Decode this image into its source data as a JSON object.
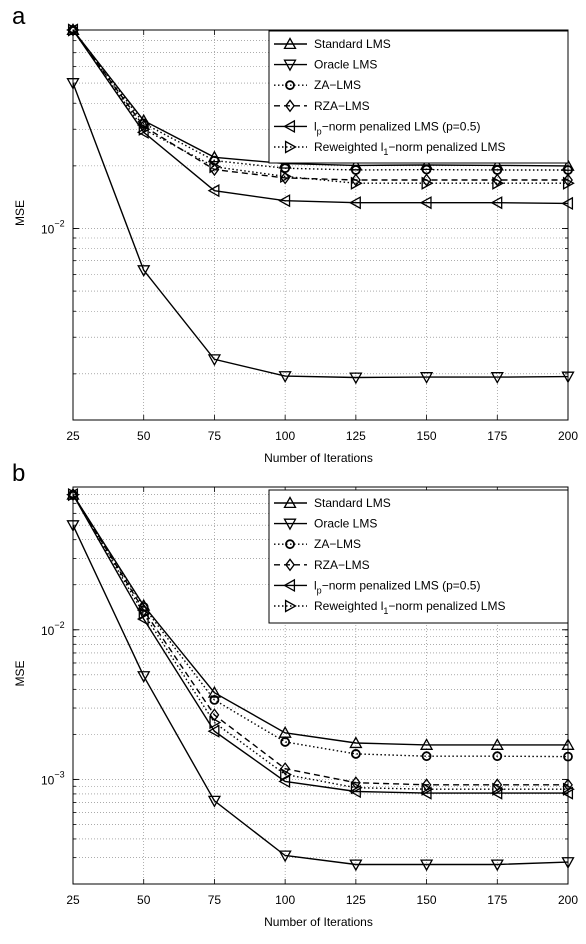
{
  "chart_data": [
    {
      "type": "line",
      "panel_label": "a",
      "xlabel": "Number of Iterations",
      "ylabel": "MSE",
      "yscale": "log",
      "x": [
        25,
        50,
        75,
        100,
        125,
        150,
        175,
        200
      ],
      "xlim": [
        25,
        200
      ],
      "ylim": [
        0.0012,
        0.09
      ],
      "yticks": [
        0.01
      ],
      "ytick_labels": [
        {
          "base": "10",
          "exp": "−2"
        }
      ],
      "grid": true,
      "legend_position": "top-right",
      "series": [
        {
          "name": "Standard LMS",
          "marker": "triangle-up",
          "dash": "solid",
          "values": [
            0.09,
            0.033,
            0.022,
            0.0205,
            0.0201,
            0.0202,
            0.0201,
            0.02
          ]
        },
        {
          "name": "Oracle LMS",
          "marker": "triangle-down",
          "dash": "solid",
          "values": [
            0.05,
            0.0063,
            0.00235,
            0.00195,
            0.00192,
            0.00193,
            0.00193,
            0.00194
          ]
        },
        {
          "name": "ZA−LMS",
          "marker": "circle",
          "dash": "dotted",
          "values": [
            0.09,
            0.032,
            0.0212,
            0.0195,
            0.0191,
            0.0192,
            0.0191,
            0.0191
          ]
        },
        {
          "name": "RZA−LMS",
          "marker": "diamond",
          "dash": "dashed",
          "values": [
            0.09,
            0.031,
            0.0192,
            0.0175,
            0.0171,
            0.0171,
            0.0171,
            0.0171
          ]
        },
        {
          "name": "l",
          "name_sub": "p",
          "name_rest": "−norm penalized LMS (p=0.5)",
          "marker": "triangle-left",
          "dash": "solid",
          "values": [
            0.09,
            0.029,
            0.0152,
            0.0136,
            0.0133,
            0.0133,
            0.0133,
            0.0132
          ]
        },
        {
          "name": "Reweighted l",
          "name_sub": "1",
          "name_rest": "−norm penalized LMS",
          "marker": "triangle-right",
          "dash": "dotted",
          "values": [
            0.09,
            0.03,
            0.0198,
            0.0178,
            0.0165,
            0.0165,
            0.0165,
            0.0165
          ]
        }
      ]
    },
    {
      "type": "line",
      "panel_label": "b",
      "xlabel": "Number of Iterations",
      "ylabel": "MSE",
      "yscale": "log",
      "x": [
        25,
        50,
        75,
        100,
        125,
        150,
        175,
        200
      ],
      "xlim": [
        25,
        200
      ],
      "ylim": [
        0.0002,
        0.09
      ],
      "yticks": [
        0.01,
        0.001
      ],
      "ytick_labels": [
        {
          "base": "10",
          "exp": "−2"
        },
        {
          "base": "10",
          "exp": "−3"
        }
      ],
      "grid": true,
      "legend_position": "top-right",
      "series": [
        {
          "name": "Standard LMS",
          "marker": "triangle-up",
          "dash": "solid",
          "values": [
            0.08,
            0.0145,
            0.0038,
            0.00205,
            0.00175,
            0.0017,
            0.0017,
            0.0017
          ]
        },
        {
          "name": "Oracle LMS",
          "marker": "triangle-down",
          "dash": "solid",
          "values": [
            0.05,
            0.0049,
            0.00072,
            0.00031,
            0.00027,
            0.00027,
            0.00027,
            0.00028
          ]
        },
        {
          "name": "ZA−LMS",
          "marker": "circle",
          "dash": "dotted",
          "values": [
            0.08,
            0.0142,
            0.0034,
            0.00178,
            0.00148,
            0.00143,
            0.00143,
            0.00142
          ]
        },
        {
          "name": "RZA−LMS",
          "marker": "diamond",
          "dash": "dashed",
          "values": [
            0.08,
            0.0135,
            0.0027,
            0.00118,
            0.00095,
            0.00092,
            0.00092,
            0.00092
          ]
        },
        {
          "name": "l",
          "name_sub": "p",
          "name_rest": "−norm penalized LMS (p=0.5)",
          "marker": "triangle-left",
          "dash": "solid",
          "values": [
            0.08,
            0.0118,
            0.0021,
            0.00097,
            0.00083,
            0.00081,
            0.00081,
            0.00081
          ]
        },
        {
          "name": "Reweighted l",
          "name_sub": "1",
          "name_rest": "−norm penalized LMS",
          "marker": "triangle-right",
          "dash": "dotted",
          "values": [
            0.08,
            0.0128,
            0.0024,
            0.00108,
            0.00088,
            0.00086,
            0.00086,
            0.00086
          ]
        }
      ]
    }
  ]
}
